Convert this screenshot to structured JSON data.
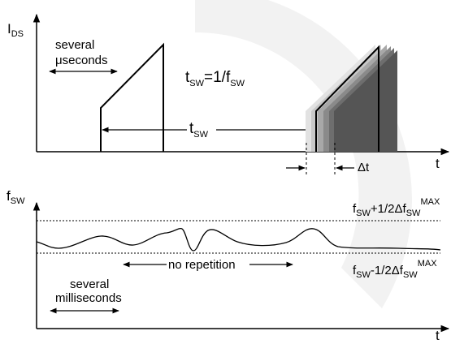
{
  "colors": {
    "watermark": "#f0f0f0",
    "ghost_pulses": [
      "#e2e2e2",
      "#c8c8c8",
      "#a8a8a8",
      "#8a8a8a",
      "#6e6e6e",
      "#555555"
    ],
    "line": "#000000"
  },
  "top_panel": {
    "y_axis": {
      "main": "I",
      "sub": "DS"
    },
    "x_axis": "t",
    "several_us": {
      "line1": "several",
      "line2": "μseconds"
    },
    "period_eq": {
      "a": "t",
      "a_sub": "SW",
      "b": "=1/f",
      "b_sub": "SW"
    },
    "tsw": {
      "main": "t",
      "sub": "SW"
    },
    "delta_t": "Δt"
  },
  "bottom_panel": {
    "y_axis": {
      "main": "f",
      "sub": "SW"
    },
    "x_axis": "t",
    "upper_limit": {
      "a": "f",
      "a_sub": "SW",
      "b": "+1/2Δf",
      "b_sub": "SW",
      "sup": "MAX"
    },
    "lower_limit": {
      "a": "f",
      "a_sub": "SW",
      "b": "-1/2Δf",
      "b_sub": "SW",
      "sup": "MAX"
    },
    "no_repetition": "no repetition",
    "several_ms": {
      "line1": "several",
      "line2": "milliseconds"
    }
  }
}
